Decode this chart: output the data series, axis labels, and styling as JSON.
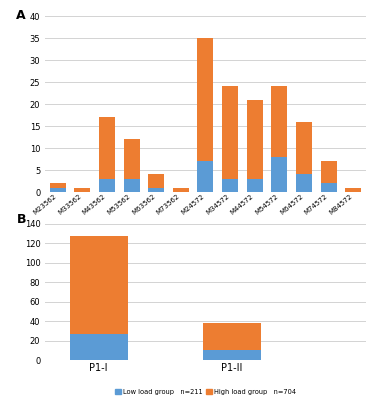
{
  "panel_A": {
    "categories": [
      "M23562",
      "M33562",
      "M43562",
      "M53562",
      "M63562",
      "M73562",
      "M24572",
      "M34572",
      "M44572",
      "M54572",
      "M64572",
      "M74572",
      "M84572"
    ],
    "low_load": [
      1,
      0,
      3,
      3,
      1,
      0,
      7,
      3,
      3,
      8,
      4,
      2,
      0
    ],
    "high_load": [
      1,
      1,
      14,
      9,
      3,
      1,
      28,
      21,
      18,
      16,
      12,
      5,
      1
    ],
    "ylim": [
      0,
      40
    ],
    "yticks": [
      0,
      5,
      10,
      15,
      20,
      25,
      30,
      35,
      40
    ],
    "label": "A"
  },
  "panel_B": {
    "categories": [
      "P1-I",
      "P1-II"
    ],
    "low_load": [
      27,
      10
    ],
    "high_load": [
      101,
      28
    ],
    "ylim": [
      0,
      140
    ],
    "yticks": [
      0,
      20,
      40,
      60,
      80,
      100,
      120,
      140
    ],
    "label": "B"
  },
  "colors": {
    "low": "#5b9bd5",
    "high": "#ed7d31"
  },
  "legend": {
    "low_label": "Low load group   n=211",
    "high_label": "High load group   n=704"
  },
  "background": "#ffffff",
  "grid_color": "#d3d3d3"
}
